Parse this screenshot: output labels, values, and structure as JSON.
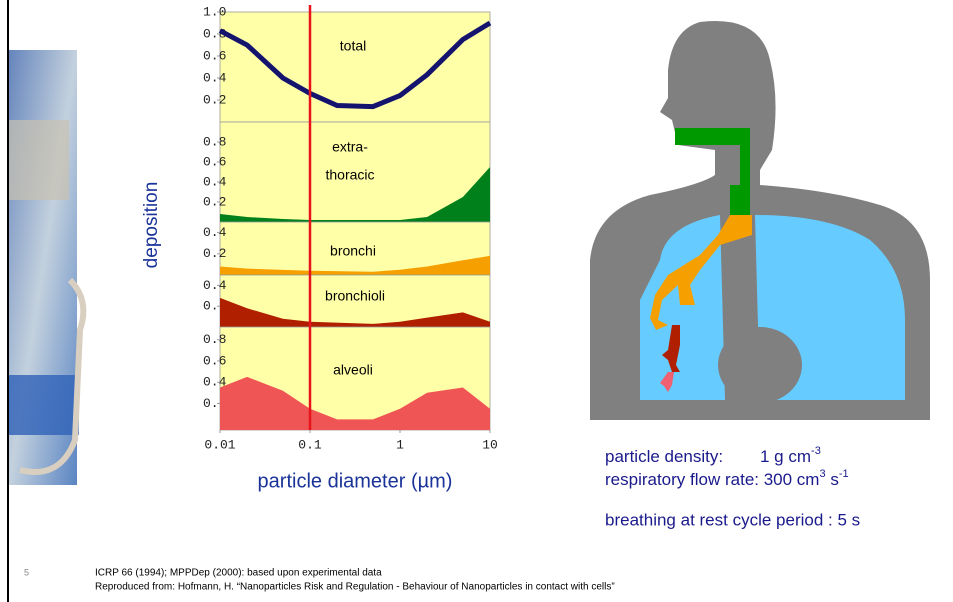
{
  "figure": {
    "ylabel": "deposition",
    "xlabel": "particle diameter (µm)",
    "reference_x": 0.1,
    "reference_color": "#e8141c",
    "background": "#ffffa8"
  },
  "chart_data": [
    {
      "type": "line",
      "labels": [
        "total"
      ],
      "x": [
        0.01,
        0.02,
        0.05,
        0.1,
        0.2,
        0.5,
        1,
        2,
        5,
        10
      ],
      "xlim": [
        0.01,
        10
      ],
      "log_x": true,
      "series": [
        {
          "color": "#14146e",
          "values": [
            0.83,
            0.7,
            0.4,
            0.26,
            0.15,
            0.14,
            0.24,
            0.43,
            0.75,
            0.9
          ]
        }
      ],
      "ylim": [
        0,
        1
      ],
      "yticks": [
        {
          "value": 1,
          "label": "1.0"
        },
        0.8,
        0.6,
        0.4,
        0.2
      ]
    },
    {
      "type": "area",
      "labels": [
        "extra-",
        "thoracic"
      ],
      "x": [
        0.01,
        0.02,
        0.05,
        0.1,
        0.5,
        1,
        2,
        5,
        10
      ],
      "xlim": [
        0.01,
        10
      ],
      "log_x": true,
      "series": [
        {
          "color": "#00801a",
          "values": [
            0.08,
            0.05,
            0.03,
            0.02,
            0.02,
            0.02,
            0.05,
            0.25,
            0.55
          ]
        }
      ],
      "ylim": [
        0,
        1
      ],
      "yticks": [
        0.8,
        0.6,
        0.4,
        0.2
      ]
    },
    {
      "type": "area",
      "labels": [
        "bronchi"
      ],
      "x": [
        0.01,
        0.02,
        0.1,
        0.5,
        1,
        2,
        5,
        10
      ],
      "xlim": [
        0.01,
        10
      ],
      "log_x": true,
      "series": [
        {
          "color": "#f5a000",
          "values": [
            0.08,
            0.06,
            0.04,
            0.03,
            0.05,
            0.08,
            0.14,
            0.18
          ]
        }
      ],
      "ylim": [
        0,
        0.5
      ],
      "yticks": [
        0.4,
        0.2
      ]
    },
    {
      "type": "area",
      "labels": [
        "bronchioli"
      ],
      "x": [
        0.01,
        0.02,
        0.05,
        0.1,
        0.5,
        1,
        2,
        5,
        10
      ],
      "xlim": [
        0.01,
        10
      ],
      "log_x": true,
      "series": [
        {
          "color": "#b02000",
          "values": [
            0.28,
            0.18,
            0.08,
            0.05,
            0.03,
            0.05,
            0.09,
            0.14,
            0.05
          ]
        }
      ],
      "ylim": [
        0,
        0.5
      ],
      "yticks": [
        0.4,
        {
          "value": 0.2,
          "label": "0."
        }
      ]
    },
    {
      "type": "area",
      "labels": [
        "alveoli"
      ],
      "x": [
        0.01,
        0.02,
        0.05,
        0.1,
        0.2,
        0.5,
        1,
        2,
        5,
        10
      ],
      "xlim": [
        0.01,
        10
      ],
      "log_x": true,
      "series": [
        {
          "color": "#f05555",
          "values": [
            0.35,
            0.45,
            0.32,
            0.15,
            0.05,
            0.05,
            0.15,
            0.3,
            0.35,
            0.15
          ]
        }
      ],
      "ylim": [
        -0.05,
        0.92
      ],
      "yticks": [
        0.8,
        0.6,
        0.4,
        {
          "value": 0.2,
          "label": "0."
        }
      ],
      "xticks": [
        0.01,
        0.1,
        1,
        10
      ]
    }
  ],
  "conditions": {
    "density_label": "particle density:",
    "density_value": "1 g cm",
    "density_exp": "-3",
    "flow_label": "respiratory flow rate: 300 cm",
    "flow_exp1": "3",
    "flow_unit": " s",
    "flow_exp2": "-1",
    "breathing": "breathing at rest  cycle period : 5 s"
  },
  "footer": {
    "page": "5",
    "source": "ICRP 66 (1994); MPPDep (2000): based upon experimental data",
    "reproduced": "Reproduced from: Hofmann, H. “Nanoparticles Risk and Regulation - Behaviour of Nanoparticles in contact with cells”"
  }
}
